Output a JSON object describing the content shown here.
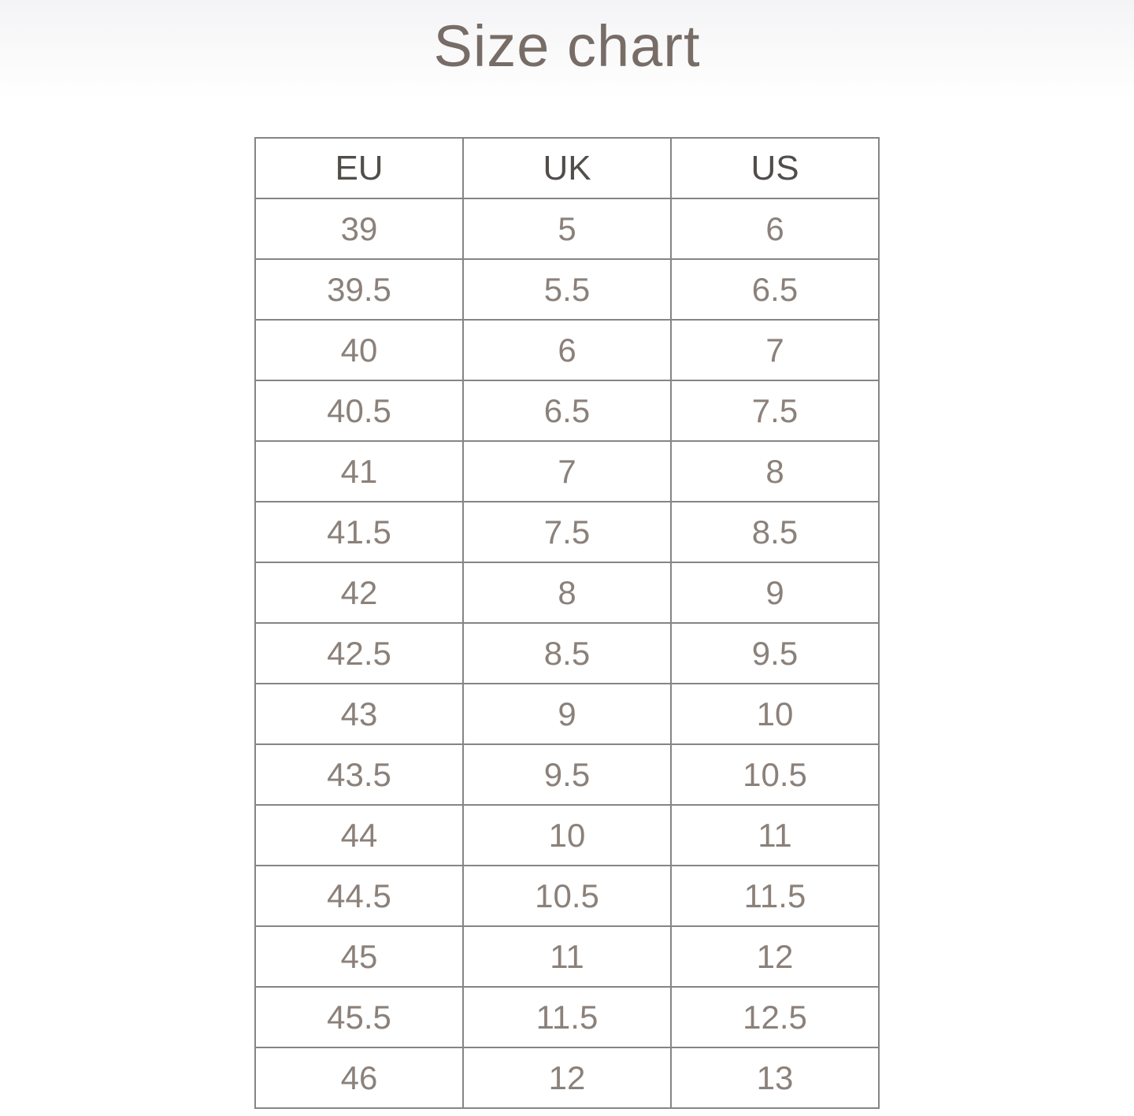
{
  "page": {
    "title": "Size chart"
  },
  "colors": {
    "background": "#ffffff",
    "title_text": "#776d66",
    "header_text": "#514d4a",
    "cell_text": "#8b817a",
    "table_border": "#858585"
  },
  "chart_data": {
    "type": "table",
    "title": "Size chart",
    "columns": [
      "EU",
      "UK",
      "US"
    ],
    "rows": [
      [
        39,
        5,
        6
      ],
      [
        39.5,
        5.5,
        6.5
      ],
      [
        40,
        6,
        7
      ],
      [
        40.5,
        6.5,
        7.5
      ],
      [
        41,
        7,
        8
      ],
      [
        41.5,
        7.5,
        8.5
      ],
      [
        42,
        8,
        9
      ],
      [
        42.5,
        8.5,
        9.5
      ],
      [
        43,
        9,
        10
      ],
      [
        43.5,
        9.5,
        10.5
      ],
      [
        44,
        10,
        11
      ],
      [
        44.5,
        10.5,
        11.5
      ],
      [
        45,
        11,
        12
      ],
      [
        45.5,
        11.5,
        12.5
      ],
      [
        46,
        12,
        13
      ]
    ],
    "layout_hints": {
      "grid": "all-borders",
      "column_alignment": "center",
      "header_row": true
    }
  }
}
